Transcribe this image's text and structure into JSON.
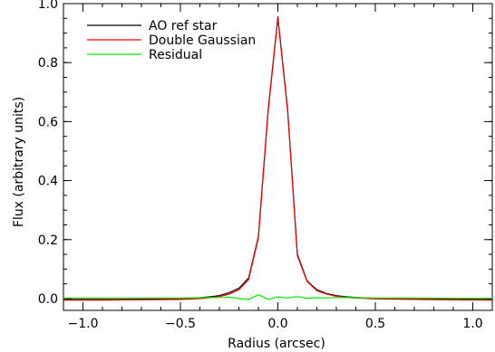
{
  "chart_data": {
    "type": "line",
    "xlabel": "Radius (arcsec)",
    "ylabel": "Flux (arbitrary units)",
    "xlim": [
      -1.1,
      1.1
    ],
    "ylim": [
      -0.04,
      1.0
    ],
    "xticks": [
      -1.0,
      -0.5,
      0.0,
      0.5,
      1.0
    ],
    "xtick_labels": [
      "−1.0",
      "−0.5",
      "0.0",
      "0.5",
      "1.0"
    ],
    "yticks": [
      0.0,
      0.2,
      0.4,
      0.6,
      0.8,
      1.0
    ],
    "ytick_labels": [
      "0.0",
      "0.2",
      "0.4",
      "0.6",
      "0.8",
      "1.0"
    ],
    "legend_position": "top-left",
    "grid": false,
    "series": [
      {
        "name": "AO ref star",
        "color": "#000000",
        "x": [
          -1.1,
          -0.9,
          -0.7,
          -0.5,
          -0.4,
          -0.35,
          -0.3,
          -0.25,
          -0.2,
          -0.15,
          -0.1,
          -0.05,
          0.0,
          0.05,
          0.1,
          0.15,
          0.2,
          0.25,
          0.3,
          0.35,
          0.4,
          0.5,
          0.7,
          0.9,
          1.1
        ],
        "y": [
          -0.003,
          -0.003,
          -0.002,
          -0.001,
          0.003,
          0.006,
          0.01,
          0.02,
          0.035,
          0.07,
          0.21,
          0.64,
          0.955,
          0.64,
          0.15,
          0.06,
          0.03,
          0.017,
          0.01,
          0.006,
          0.004,
          0.001,
          -0.001,
          -0.002,
          -0.003
        ]
      },
      {
        "name": "Double Gaussian",
        "color": "#ff0000",
        "x": [
          -1.1,
          -0.9,
          -0.7,
          -0.5,
          -0.4,
          -0.35,
          -0.3,
          -0.25,
          -0.2,
          -0.15,
          -0.1,
          -0.05,
          0.0,
          0.05,
          0.1,
          0.15,
          0.2,
          0.25,
          0.3,
          0.35,
          0.4,
          0.5,
          0.7,
          0.9,
          1.1
        ],
        "y": [
          -0.005,
          -0.005,
          -0.004,
          -0.003,
          0.0,
          0.003,
          0.007,
          0.015,
          0.03,
          0.065,
          0.205,
          0.635,
          0.95,
          0.635,
          0.145,
          0.058,
          0.027,
          0.015,
          0.008,
          0.004,
          0.002,
          -0.001,
          -0.003,
          -0.004,
          -0.005
        ]
      },
      {
        "name": "Residual",
        "color": "#00ee00",
        "x": [
          -1.1,
          -0.9,
          -0.7,
          -0.5,
          -0.4,
          -0.3,
          -0.25,
          -0.2,
          -0.15,
          -0.1,
          -0.05,
          0.0,
          0.05,
          0.1,
          0.15,
          0.2,
          0.25,
          0.3,
          0.4,
          0.5,
          0.7,
          0.9,
          1.1
        ],
        "y": [
          0.002,
          0.002,
          0.002,
          0.002,
          0.003,
          0.004,
          0.005,
          0.0,
          -0.003,
          0.013,
          -0.003,
          0.006,
          0.002,
          0.007,
          0.001,
          0.003,
          0.002,
          0.004,
          0.003,
          0.002,
          0.002,
          0.001,
          0.001
        ]
      }
    ]
  }
}
